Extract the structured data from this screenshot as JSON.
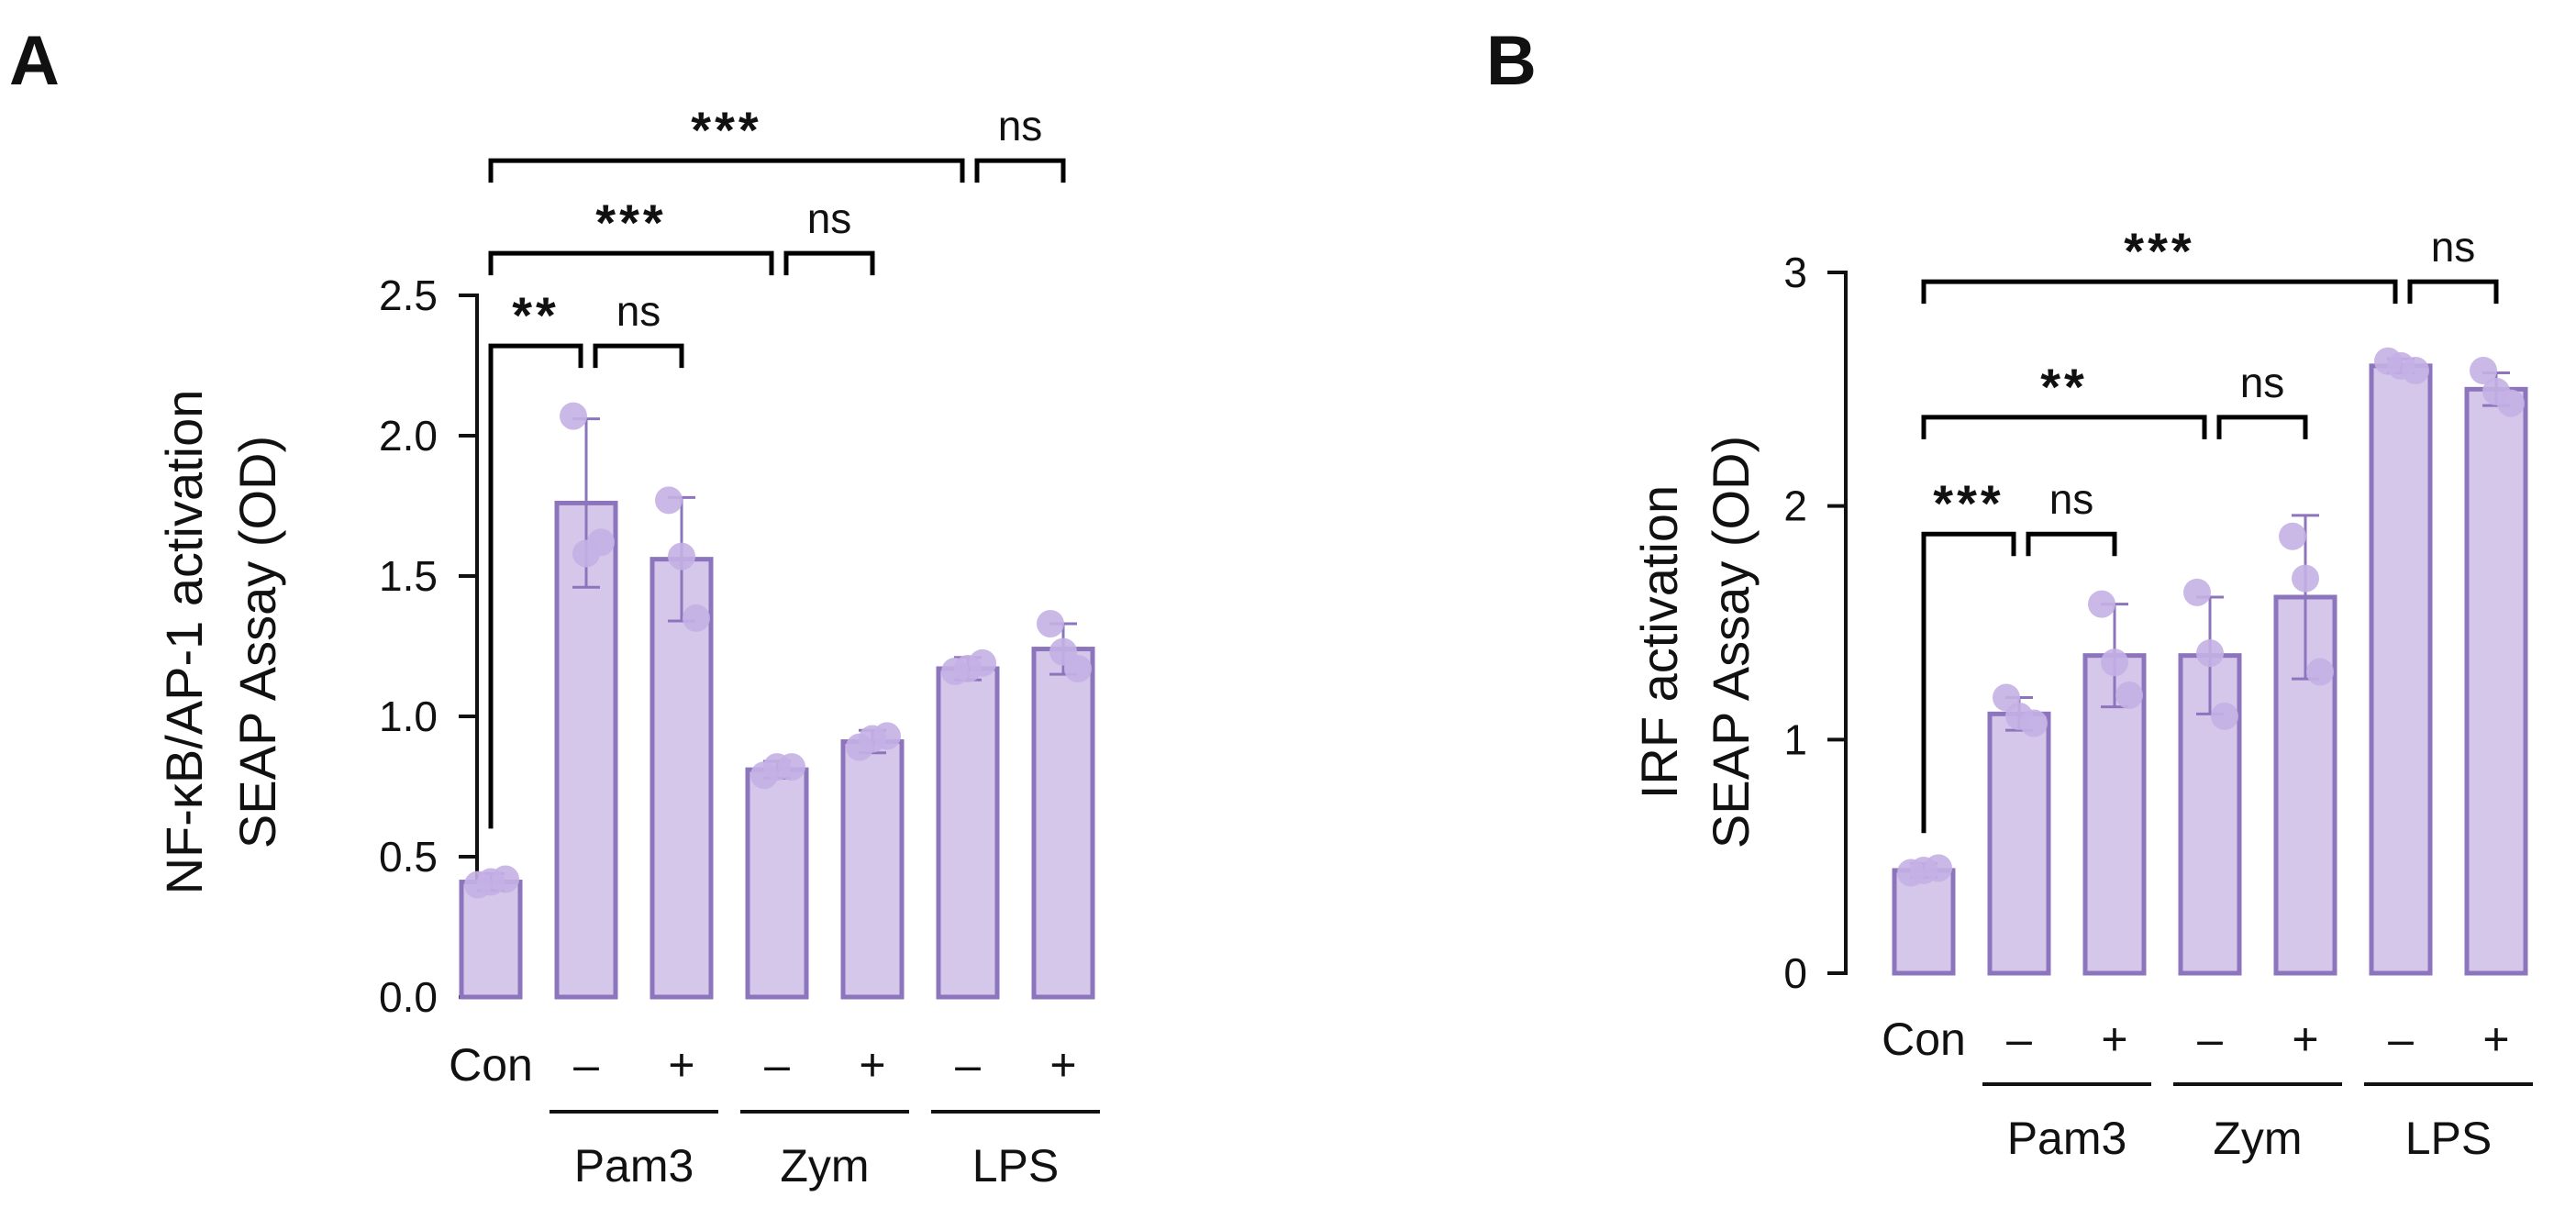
{
  "colors": {
    "bar_fill": "#d5c7ea",
    "bar_stroke": "#8d75bd",
    "point_fill": "#c4b0e4",
    "error_bar": "#8d75bd",
    "axis": "#111111",
    "bracket": "#000000"
  },
  "chart_data": [
    {
      "panel": "A",
      "type": "bar",
      "ylabel_line1": "NF-κB/AP-1 activation",
      "ylabel_line2": "SEAP Assay (OD)",
      "ylim": [
        0,
        2.5
      ],
      "ticks": [
        0.0,
        0.5,
        1.0,
        1.5,
        2.0,
        2.5
      ],
      "tick_labels": [
        "0.0",
        "0.5",
        "1.0",
        "1.5",
        "2.0",
        "2.5"
      ],
      "categories": [
        "Con",
        "–",
        "+",
        "–",
        "+",
        "–",
        "+"
      ],
      "values": [
        0.41,
        1.76,
        1.56,
        0.81,
        0.91,
        1.17,
        1.24
      ],
      "errors": [
        0.03,
        0.3,
        0.22,
        0.03,
        0.04,
        0.04,
        0.09
      ],
      "points": [
        [
          0.4,
          0.42,
          0.41
        ],
        [
          2.07,
          1.62,
          1.58
        ],
        [
          1.77,
          1.35,
          1.57
        ],
        [
          0.79,
          0.82,
          0.82
        ],
        [
          0.89,
          0.93,
          0.92
        ],
        [
          1.16,
          1.19,
          1.17
        ],
        [
          1.33,
          1.17,
          1.23
        ]
      ],
      "groups": [
        {
          "label": "Pam3",
          "from": 1,
          "to": 2
        },
        {
          "label": "Zym",
          "from": 3,
          "to": 4
        },
        {
          "label": "LPS",
          "from": 5,
          "to": 6
        }
      ],
      "comparisons": [
        {
          "from": 0,
          "to": 1,
          "level": 2.32,
          "label": "**"
        },
        {
          "from": 1,
          "to": 2,
          "level": 2.32,
          "label": "ns"
        },
        {
          "from": 0,
          "to": 3,
          "level": 2.65,
          "label": "***"
        },
        {
          "from": 3,
          "to": 4,
          "level": 2.65,
          "label": "ns"
        },
        {
          "from": 0,
          "to": 5,
          "level": 2.98,
          "label": "***"
        },
        {
          "from": 5,
          "to": 6,
          "level": 2.98,
          "label": "ns"
        }
      ]
    },
    {
      "panel": "B",
      "type": "bar",
      "ylabel_line1": "IRF activation",
      "ylabel_line2": "SEAP Assay (OD)",
      "ylim": [
        0,
        3
      ],
      "ticks": [
        0,
        1,
        2,
        3
      ],
      "tick_labels": [
        "0",
        "1",
        "2",
        "3"
      ],
      "categories": [
        "Con",
        "–",
        "+",
        "–",
        "+",
        "–",
        "+"
      ],
      "values": [
        0.44,
        1.11,
        1.36,
        1.36,
        1.61,
        2.6,
        2.5
      ],
      "errors": [
        0.03,
        0.07,
        0.22,
        0.25,
        0.35,
        0.03,
        0.07
      ],
      "points": [
        [
          0.43,
          0.45,
          0.44
        ],
        [
          1.18,
          1.07,
          1.1
        ],
        [
          1.58,
          1.19,
          1.33
        ],
        [
          1.63,
          1.1,
          1.37
        ],
        [
          1.87,
          1.29,
          1.69
        ],
        [
          2.62,
          2.58,
          2.6
        ],
        [
          2.58,
          2.44,
          2.49
        ]
      ],
      "groups": [
        {
          "label": "Pam3",
          "from": 1,
          "to": 2
        },
        {
          "label": "Zym",
          "from": 3,
          "to": 4
        },
        {
          "label": "LPS",
          "from": 5,
          "to": 6
        }
      ],
      "comparisons": [
        {
          "from": 0,
          "to": 1,
          "level": 1.88,
          "label": "***"
        },
        {
          "from": 1,
          "to": 2,
          "level": 1.88,
          "label": "ns"
        },
        {
          "from": 0,
          "to": 3,
          "level": 2.38,
          "label": "**"
        },
        {
          "from": 3,
          "to": 4,
          "level": 2.38,
          "label": "ns"
        },
        {
          "from": 0,
          "to": 5,
          "level": 2.96,
          "label": "***"
        },
        {
          "from": 5,
          "to": 6,
          "level": 2.96,
          "label": "ns"
        }
      ]
    }
  ]
}
